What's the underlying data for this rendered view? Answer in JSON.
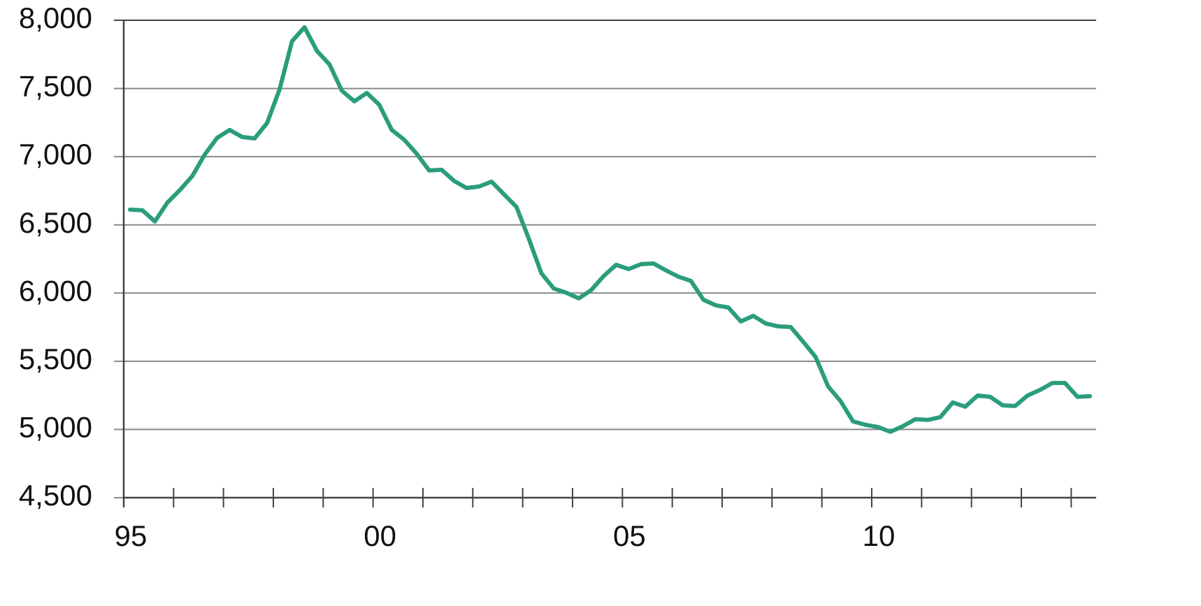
{
  "chart_data": {
    "type": "line",
    "x": [
      1995.125,
      1995.375,
      1995.625,
      1995.875,
      1996.125,
      1996.375,
      1996.625,
      1996.875,
      1997.125,
      1997.375,
      1997.625,
      1997.875,
      1998.125,
      1998.375,
      1998.625,
      1998.875,
      1999.125,
      1999.375,
      1999.625,
      1999.875,
      2000.125,
      2000.375,
      2000.625,
      2000.875,
      2001.125,
      2001.375,
      2001.625,
      2001.875,
      2002.125,
      2002.375,
      2002.625,
      2002.875,
      2003.125,
      2003.375,
      2003.625,
      2003.875,
      2004.125,
      2004.375,
      2004.625,
      2004.875,
      2005.125,
      2005.375,
      2005.625,
      2005.875,
      2006.125,
      2006.375,
      2006.625,
      2006.875,
      2007.125,
      2007.375,
      2007.625,
      2007.875,
      2008.125,
      2008.375,
      2008.625,
      2008.875,
      2009.125,
      2009.375,
      2009.625,
      2009.875,
      2010.125,
      2010.375,
      2010.625,
      2010.875,
      2011.125,
      2011.375,
      2011.625,
      2011.875,
      2012.125,
      2012.375,
      2012.625,
      2012.875,
      2013.125,
      2013.375,
      2013.625,
      2013.875,
      2014.125,
      2014.375
    ],
    "series": [
      {
        "color": "#2a9d7c",
        "values": [
          6612,
          6607,
          6525,
          6663,
          6755,
          6858,
          7016,
          7139,
          7196,
          7144,
          7134,
          7247,
          7493,
          7846,
          7949,
          7775,
          7677,
          7483,
          7406,
          7467,
          7380,
          7196,
          7124,
          7021,
          6899,
          6904,
          6822,
          6770,
          6781,
          6817,
          6724,
          6632,
          6397,
          6145,
          6033,
          6002,
          5961,
          6022,
          6125,
          6207,
          6176,
          6212,
          6217,
          6166,
          6120,
          6089,
          5951,
          5910,
          5894,
          5792,
          5833,
          5777,
          5756,
          5751,
          5643,
          5531,
          5316,
          5208,
          5059,
          5034,
          5018,
          4983,
          5024,
          5075,
          5070,
          5090,
          5198,
          5167,
          5249,
          5239,
          5177,
          5172,
          5249,
          5290,
          5341,
          5341,
          5239,
          5244
        ]
      }
    ],
    "xlim": [
      1995,
      2014.5
    ],
    "xticks": [
      {
        "value": 1995,
        "label": "95"
      },
      {
        "value": 2000,
        "label": "00"
      },
      {
        "value": 2005,
        "label": "05"
      },
      {
        "value": 2010,
        "label": "10"
      }
    ],
    "xticks_minor": [
      1996,
      1997,
      1998,
      1999,
      2001,
      2002,
      2003,
      2004,
      2006,
      2007,
      2008,
      2009,
      2011,
      2012,
      2013,
      2014
    ],
    "ylim": [
      4500,
      8000
    ],
    "yticks": [
      {
        "value": 4500,
        "label": "4,500"
      },
      {
        "value": 5000,
        "label": "5,000"
      },
      {
        "value": 5500,
        "label": "5,500"
      },
      {
        "value": 6000,
        "label": "6,000"
      },
      {
        "value": 6500,
        "label": "6,500"
      },
      {
        "value": 7000,
        "label": "7,000"
      },
      {
        "value": 7500,
        "label": "7,500"
      },
      {
        "value": 8000,
        "label": "8,000"
      }
    ],
    "grid": true
  }
}
